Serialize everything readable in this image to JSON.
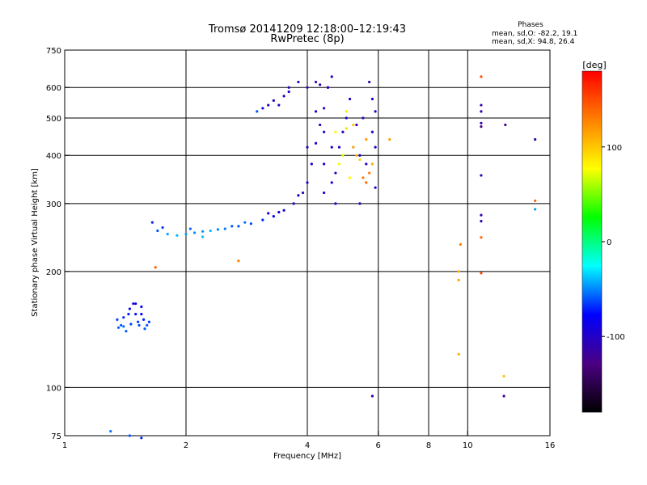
{
  "chart_data": {
    "type": "scatter",
    "title_line1": "Tromsø 20141209 12:18:00–12:19:43",
    "title_line2": "RwPretec (8p)",
    "stats": {
      "heading": "Phases",
      "line_o": "mean, sd,O:  -82.2, 19.1",
      "line_x": "mean, sd,X:  94.8, 26.4"
    },
    "xlabel": "Frequency [MHz]",
    "ylabel": "Stationary phase Virtual Height [km]",
    "x_scale": "log",
    "y_scale": "log",
    "xlim": [
      1,
      16
    ],
    "ylim": [
      75,
      750
    ],
    "xticks": [
      1,
      2,
      4,
      6,
      8,
      10,
      16
    ],
    "yticks": [
      75,
      100,
      200,
      300,
      400,
      500,
      600,
      750
    ],
    "x_gridlines": [
      2,
      4,
      6,
      8,
      10
    ],
    "y_gridlines": [
      100,
      200,
      300,
      400,
      500,
      600
    ],
    "grid": true,
    "colorbar": {
      "label": "[deg]",
      "range": [
        -180,
        180
      ],
      "ticks": [
        100,
        0,
        -100
      ],
      "colormap": [
        "#000000",
        "#4b0082",
        "#0000ff",
        "#00ffff",
        "#00ff00",
        "#ffff00",
        "#ff8000",
        "#ff0000"
      ]
    },
    "trace_colors": {
      "blue": "#1f3fe8",
      "cyan": "#18a6e0",
      "yellow": "#e0d020",
      "orange": "#f09020"
    },
    "series": [
      {
        "values_kind": "phase_deg",
        "points": [
          [
            1.35,
            150,
            -62
          ],
          [
            1.38,
            145,
            -60
          ],
          [
            1.4,
            152,
            -70
          ],
          [
            1.42,
            140,
            -58
          ],
          [
            1.45,
            160,
            -80
          ],
          [
            1.48,
            165,
            -90
          ],
          [
            1.5,
            155,
            -75
          ],
          [
            1.52,
            148,
            -65
          ],
          [
            1.55,
            162,
            -85
          ],
          [
            1.58,
            142,
            -60
          ],
          [
            1.4,
            144,
            -55
          ],
          [
            1.46,
            146,
            -64
          ],
          [
            1.53,
            145,
            -62
          ],
          [
            1.57,
            150,
            -70
          ],
          [
            1.44,
            155,
            -72
          ],
          [
            1.5,
            165,
            -88
          ],
          [
            1.55,
            155,
            -78
          ],
          [
            1.6,
            145,
            -60
          ],
          [
            1.36,
            143,
            -58
          ],
          [
            1.62,
            148,
            -66
          ],
          [
            1.65,
            268,
            -70
          ],
          [
            1.7,
            255,
            -60
          ],
          [
            1.8,
            250,
            -45
          ],
          [
            1.9,
            248,
            -40
          ],
          [
            2.0,
            250,
            -45
          ],
          [
            2.1,
            252,
            -50
          ],
          [
            2.2,
            254,
            -48
          ],
          [
            2.3,
            255,
            -40
          ],
          [
            2.4,
            257,
            -50
          ],
          [
            2.5,
            258,
            -55
          ],
          [
            2.7,
            262,
            -60
          ],
          [
            2.9,
            266,
            -62
          ],
          [
            3.1,
            272,
            -70
          ],
          [
            3.3,
            278,
            -80
          ],
          [
            3.5,
            288,
            -95
          ],
          [
            3.7,
            300,
            -100
          ],
          [
            3.9,
            320,
            -105
          ],
          [
            4.0,
            340,
            -100
          ],
          [
            4.1,
            380,
            -95
          ],
          [
            4.2,
            430,
            -100
          ],
          [
            4.3,
            480,
            -105
          ],
          [
            4.4,
            530,
            -100
          ],
          [
            4.5,
            600,
            -110
          ],
          [
            4.6,
            640,
            -100
          ],
          [
            1.75,
            260,
            -65
          ],
          [
            2.05,
            258,
            -58
          ],
          [
            2.6,
            262,
            -60
          ],
          [
            3.2,
            283,
            -88
          ],
          [
            3.8,
            315,
            -98
          ],
          [
            2.2,
            246,
            -40
          ],
          [
            2.8,
            268,
            -55
          ],
          [
            3.4,
            285,
            -90
          ],
          [
            4.0,
            420,
            -105
          ],
          [
            4.2,
            520,
            -100
          ],
          [
            4.4,
            380,
            -95
          ],
          [
            4.8,
            420,
            -100
          ],
          [
            4.9,
            460,
            -100
          ],
          [
            5.0,
            500,
            -95
          ],
          [
            5.1,
            560,
            -100
          ],
          [
            5.3,
            480,
            -110
          ],
          [
            5.5,
            500,
            -105
          ],
          [
            5.7,
            620,
            -110
          ],
          [
            5.8,
            560,
            -100
          ],
          [
            5.9,
            420,
            -100
          ],
          [
            4.7,
            360,
            -100
          ],
          [
            4.7,
            300,
            -95
          ],
          [
            4.6,
            340,
            -100
          ],
          [
            4.4,
            320,
            -95
          ],
          [
            4.5,
            600,
            -110
          ],
          [
            4.3,
            610,
            -110
          ],
          [
            4.2,
            620,
            -110
          ],
          [
            3.4,
            540,
            -110
          ],
          [
            3.6,
            585,
            -100
          ],
          [
            3.8,
            620,
            -100
          ],
          [
            3.0,
            520,
            -60
          ],
          [
            3.2,
            540,
            -95
          ],
          [
            3.5,
            570,
            -100
          ],
          [
            3.3,
            555,
            -100
          ],
          [
            3.1,
            530,
            -85
          ],
          [
            3.6,
            600,
            -110
          ],
          [
            4.0,
            600,
            -110
          ],
          [
            4.4,
            460,
            -100
          ],
          [
            4.6,
            420,
            -100
          ],
          [
            5.2,
            420,
            -100
          ],
          [
            5.4,
            400,
            -100
          ],
          [
            5.6,
            380,
            -105
          ],
          [
            5.8,
            460,
            -100
          ],
          [
            5.9,
            520,
            -100
          ],
          [
            5.4,
            300,
            -110
          ],
          [
            5.9,
            330,
            -100
          ],
          [
            4.8,
            380,
            75
          ],
          [
            4.9,
            400,
            70
          ],
          [
            5.0,
            470,
            90
          ],
          [
            5.1,
            350,
            80
          ],
          [
            5.2,
            420,
            105
          ],
          [
            5.3,
            400,
            110
          ],
          [
            5.4,
            390,
            95
          ],
          [
            5.5,
            350,
            130
          ],
          [
            5.6,
            340,
            140
          ],
          [
            5.7,
            360,
            130
          ],
          [
            4.7,
            460,
            80
          ],
          [
            5.0,
            520,
            85
          ],
          [
            5.2,
            480,
            100
          ],
          [
            5.6,
            440,
            120
          ],
          [
            5.8,
            380,
            110
          ],
          [
            6.4,
            440,
            115
          ],
          [
            10.8,
            640,
            150
          ],
          [
            10.8,
            540,
            -110
          ],
          [
            10.8,
            520,
            -110
          ],
          [
            10.8,
            485,
            -110
          ],
          [
            10.8,
            475,
            -130
          ],
          [
            12.4,
            480,
            -125
          ],
          [
            10.8,
            355,
            -110
          ],
          [
            10.8,
            280,
            -110
          ],
          [
            10.8,
            270,
            -110
          ],
          [
            14.7,
            440,
            -110
          ],
          [
            14.7,
            305,
            140
          ],
          [
            14.7,
            290,
            -45
          ],
          [
            9.5,
            200,
            110
          ],
          [
            9.5,
            190,
            115
          ],
          [
            9.6,
            235,
            130
          ],
          [
            10.8,
            245,
            140
          ],
          [
            10.8,
            198,
            150
          ],
          [
            1.68,
            205,
            140
          ],
          [
            2.7,
            213,
            130
          ],
          [
            9.5,
            122,
            110
          ],
          [
            12.3,
            107,
            100
          ],
          [
            12.3,
            95,
            -120
          ],
          [
            5.8,
            95,
            -115
          ],
          [
            1.3,
            77,
            -55
          ],
          [
            1.45,
            75,
            -60
          ],
          [
            1.55,
            74,
            -70
          ]
        ]
      }
    ]
  }
}
